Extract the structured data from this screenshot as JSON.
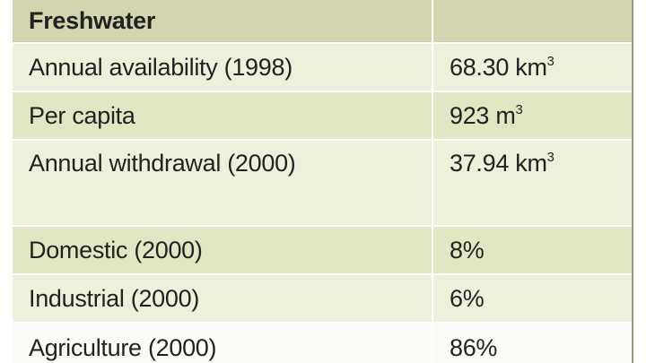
{
  "table": {
    "header": {
      "label": "Freshwater",
      "value": ""
    },
    "rows": [
      {
        "label": "Annual availability (1998)",
        "value": "68.30 km",
        "sup": "3"
      },
      {
        "label": "Per capita",
        "value": "923 m",
        "sup": "3"
      },
      {
        "label": "Annual withdrawal (2000)",
        "value": "37.94 km",
        "sup": "3"
      },
      {
        "label": "Domestic (2000)",
        "value": "8%",
        "sup": ""
      },
      {
        "label": "Industrial (2000)",
        "value": "6%",
        "sup": ""
      },
      {
        "label": "Agriculture (2000)",
        "value": "86%",
        "sup": ""
      }
    ]
  }
}
